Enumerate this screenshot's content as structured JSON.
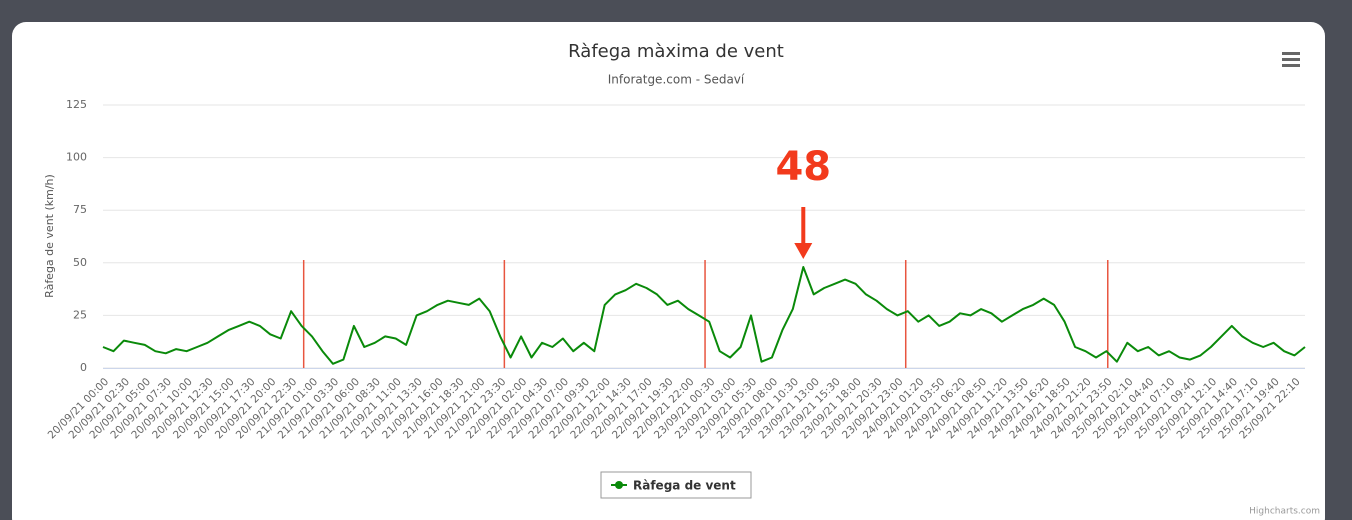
{
  "chart_data": {
    "type": "line",
    "title": "Ràfega màxima de vent",
    "subtitle": "Inforatge.com - Sedaví",
    "y_label": "Ràfega de vent (km/h)",
    "credits": "Highcharts.com",
    "ylim": [
      0,
      125
    ],
    "yticks": [
      0,
      25,
      50,
      75,
      100,
      125
    ],
    "grid": true,
    "legend": "bottom",
    "categories": [
      "20/09/21 00:00",
      null,
      "20/09/21 02:30",
      null,
      "20/09/21 05:00",
      null,
      "20/09/21 07:30",
      null,
      "20/09/21 10:00",
      null,
      "20/09/21 12:30",
      null,
      "20/09/21 15:00",
      null,
      "20/09/21 17:30",
      null,
      "20/09/21 20:00",
      null,
      "20/09/21 22:30",
      null,
      "21/09/21 01:00",
      null,
      "21/09/21 03:30",
      null,
      "21/09/21 06:00",
      null,
      "21/09/21 08:30",
      null,
      "21/09/21 11:00",
      null,
      "21/09/21 13:30",
      null,
      "21/09/21 16:00",
      null,
      "21/09/21 18:30",
      null,
      "21/09/21 21:00",
      null,
      "21/09/21 23:30",
      null,
      "22/09/21 02:00",
      null,
      "22/09/21 04:30",
      null,
      "22/09/21 07:00",
      null,
      "22/09/21 09:30",
      null,
      "22/09/21 12:00",
      null,
      "22/09/21 14:30",
      null,
      "22/09/21 17:00",
      null,
      "22/09/21 19:30",
      null,
      "22/09/21 22:00",
      null,
      "23/09/21 00:30",
      null,
      "23/09/21 03:00",
      null,
      "23/09/21 05:30",
      null,
      "23/09/21 08:00",
      null,
      "23/09/21 10:30",
      null,
      "23/09/21 13:00",
      null,
      "23/09/21 15:30",
      null,
      "23/09/21 18:00",
      null,
      "23/09/21 20:30",
      null,
      "23/09/21 23:00",
      null,
      "24/09/21 01:20",
      null,
      "24/09/21 03:50",
      null,
      "24/09/21 06:20",
      null,
      "24/09/21 08:50",
      null,
      "24/09/21 11:20",
      null,
      "24/09/21 13:50",
      null,
      "24/09/21 16:20",
      null,
      "24/09/21 18:50",
      null,
      "24/09/21 21:20",
      null,
      "24/09/21 23:50",
      null,
      "25/09/21 02:10",
      null,
      "25/09/21 04:40",
      null,
      "25/09/21 07:10",
      null,
      "25/09/21 09:40",
      null,
      "25/09/21 12:10",
      null,
      "25/09/21 14:40",
      null,
      "25/09/21 17:10",
      null,
      "25/09/21 19:40",
      null,
      "25/09/21 22:10",
      null
    ],
    "series": [
      {
        "name": "Ràfega de vent",
        "color": "#0a8a0a",
        "values": [
          10,
          8,
          13,
          12,
          11,
          8,
          7,
          9,
          8,
          10,
          12,
          15,
          18,
          20,
          22,
          20,
          16,
          14,
          27,
          20,
          15,
          8,
          2,
          4,
          20,
          10,
          12,
          15,
          14,
          11,
          25,
          27,
          30,
          32,
          31,
          30,
          33,
          27,
          15,
          5,
          15,
          5,
          12,
          10,
          14,
          8,
          12,
          8,
          30,
          35,
          37,
          40,
          38,
          35,
          30,
          32,
          28,
          25,
          22,
          8,
          5,
          10,
          25,
          3,
          5,
          18,
          28,
          48,
          35,
          38,
          40,
          42,
          40,
          35,
          32,
          28,
          25,
          27,
          22,
          25,
          20,
          22,
          26,
          25,
          28,
          26,
          22,
          25,
          28,
          30,
          33,
          30,
          22,
          10,
          8,
          5,
          8,
          3,
          12,
          8,
          10,
          6,
          8,
          5,
          4,
          6,
          10,
          15,
          20,
          15,
          12,
          10,
          12,
          8,
          6,
          10
        ]
      }
    ],
    "plot_lines": [
      {
        "value": 19.2,
        "color": "#e8553f"
      },
      {
        "value": 38.4,
        "color": "#e8553f"
      },
      {
        "value": 57.6,
        "color": "#e8553f"
      },
      {
        "value": 76.8,
        "color": "#e8553f"
      },
      {
        "value": 96.13,
        "color": "#e8553f"
      }
    ],
    "annotation": {
      "label": "48",
      "value": 48,
      "index": 67,
      "color": "#f23a1c"
    }
  }
}
